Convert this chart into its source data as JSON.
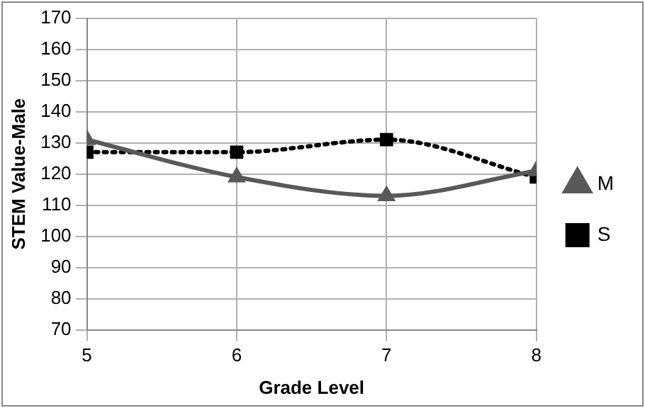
{
  "chart_data": {
    "type": "line",
    "xlabel": "Grade Level",
    "ylabel": "STEM Value-Male",
    "x": [
      5,
      6,
      7,
      8
    ],
    "xlim": [
      5,
      8
    ],
    "xticks": [
      5,
      6,
      7,
      8
    ],
    "ylim": [
      70,
      170
    ],
    "yticks": [
      70,
      80,
      90,
      100,
      110,
      120,
      130,
      140,
      150,
      160,
      170
    ],
    "grid": true,
    "legend": "right",
    "series": [
      {
        "name": "M",
        "color": "#595959",
        "values": [
          131,
          119,
          113,
          121
        ],
        "marker": "triangle",
        "line_style": "solid"
      },
      {
        "name": "S",
        "color": "#000000",
        "values": [
          127,
          127,
          131,
          119
        ],
        "marker": "square",
        "line_style": "dotted"
      }
    ]
  }
}
